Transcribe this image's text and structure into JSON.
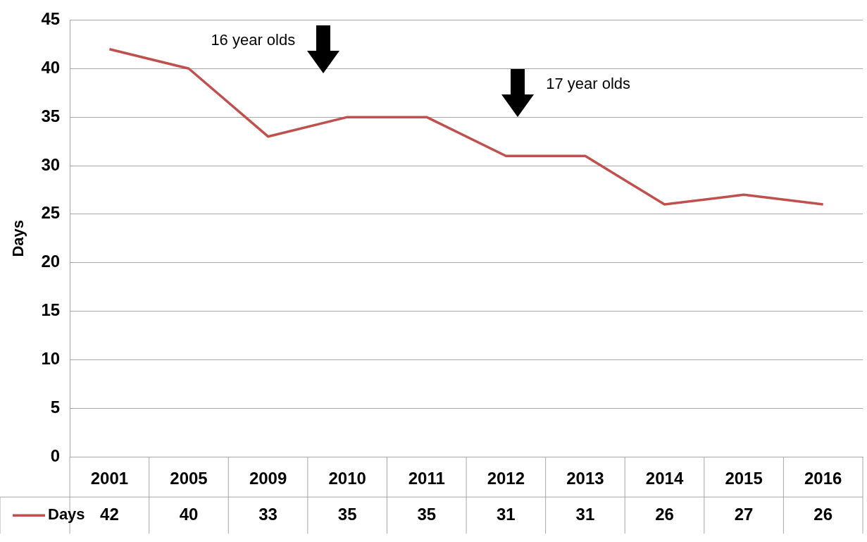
{
  "chart_data": {
    "type": "line",
    "ylabel": "Days",
    "categories": [
      "2001",
      "2005",
      "2009",
      "2010",
      "2011",
      "2012",
      "2013",
      "2014",
      "2015",
      "2016"
    ],
    "series": [
      {
        "name": "Days",
        "color": "#c0504d",
        "values": [
          42,
          40,
          33,
          35,
          35,
          31,
          31,
          26,
          27,
          26
        ]
      }
    ],
    "ylim": [
      0,
      45
    ],
    "yticks": [
      0,
      5,
      10,
      15,
      20,
      25,
      30,
      35,
      40,
      45
    ],
    "grid": "y",
    "legend": "bottom left",
    "data_labels": true,
    "marker": "none",
    "line_style": "solid",
    "annotations": [
      "16 year olds",
      "17 year olds"
    ]
  }
}
